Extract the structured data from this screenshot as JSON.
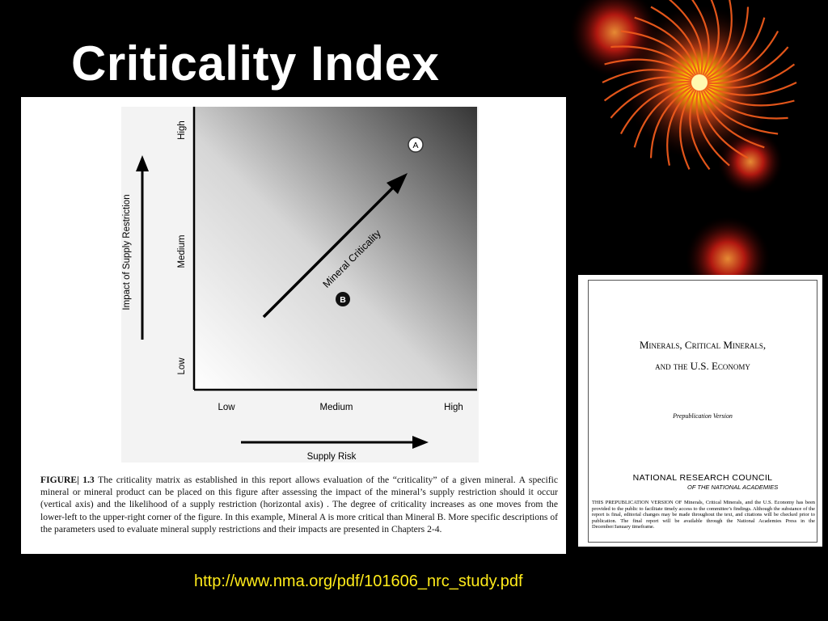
{
  "slide": {
    "title": "Criticality Index",
    "link_url": "http://www.nma.org/pdf/101606_nrc_study.pdf"
  },
  "figure": {
    "y_axis_title": "Impact of Supply Restriction",
    "x_axis_title": "Supply Risk",
    "y_ticks": [
      "Low",
      "Medium",
      "High"
    ],
    "x_ticks": [
      "Low",
      "Medium",
      "High"
    ],
    "diagonal_label": "Mineral Criticality",
    "marker_a": "A",
    "marker_b": "B",
    "caption_label": "FIGURE",
    "caption_number": "1.3",
    "caption_text": "The criticality matrix as established in this report allows evaluation of the “criticality” of a given mineral.  A specific mineral or mineral product can be placed on this figure after assessing the impact of the mineral’s supply restriction should it occur (vertical axis) and the likelihood of a supply restriction (horizontal axis) . The degree of criticality increases as one moves from the lower-left to the upper-right corner of the figure.  In this example, Mineral A is more critical than Mineral B.  More specific descriptions of the parameters used to evaluate mineral supply restrictions and their impacts are presented in Chapters 2-4."
  },
  "report_cover": {
    "title_line1": "Minerals, Critical Minerals,",
    "title_line2": "and the U.S. Economy",
    "version": "Prepublication Version",
    "org": "NATIONAL RESEARCH COUNCIL",
    "org_sub": "OF THE NATIONAL ACADEMIES",
    "notice": "THIS PREPUBLICATION VERSION OF Minerals, Critical Minerals, and the U.S. Economy has been provided to the public to facilitate timely access to the committee’s findings. Although the substance of the report is final, editorial changes may be made throughout the text, and citations will be checked prior to publication. The final report will be available through the National Academies Press in the December/January timeframe."
  },
  "colors": {
    "background": "#000000",
    "title": "#ffffff",
    "link": "#ffeb1a",
    "orb_glow": "#ffd400",
    "orb_rays": "#e8451a"
  },
  "icons": {
    "decoration": "fireworks-orbs"
  }
}
